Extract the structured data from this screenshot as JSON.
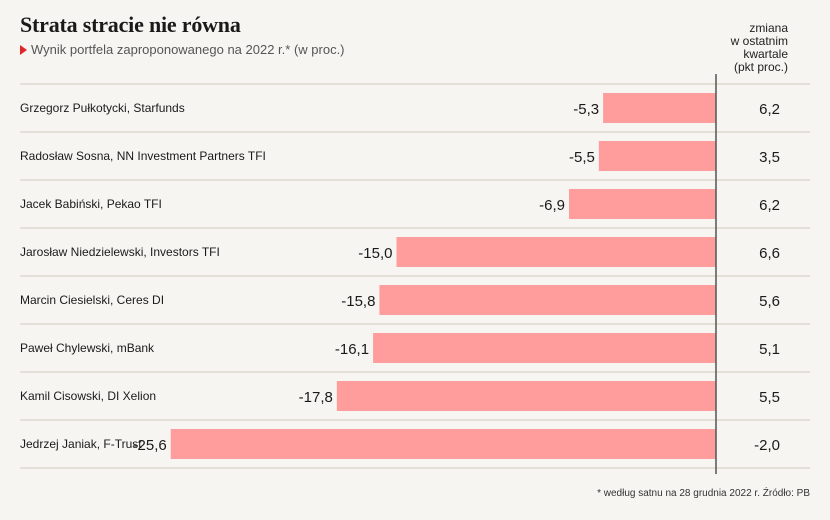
{
  "header": {
    "title": "Strata stracie nie równa",
    "subtitle": "Wynik portfela zaproponowanego na 2022 r.* (w proc.)",
    "change_header_lines": [
      "zmiana",
      "w ostatnim",
      "kwartale",
      "(pkt proc.)"
    ]
  },
  "footnote": "* według satnu na 28 grudnia 2022 r. Źródło: PB",
  "colors": {
    "bar": "#ff9c9c",
    "marker": "#e0262b",
    "divider": "#cfcbc4"
  },
  "chart_data": {
    "type": "bar",
    "orientation": "horizontal",
    "categories": [
      "Grzegorz Pułkotycki, Starfunds",
      "Radosław Sosna, NN Investment Partners TFI",
      "Jacek Babiński, Pekao TFI",
      "Jarosław Niedzielewski, Investors TFI",
      "Marcin Ciesielski, Ceres DI",
      "Paweł Chylewski, mBank",
      "Kamil Cisowski, DI Xelion",
      "Jedrzej Janiak, F-Trust"
    ],
    "series": [
      {
        "values": [
          -5.3,
          -5.5,
          -6.9,
          -15.0,
          -15.8,
          -16.1,
          -17.8,
          -25.6
        ],
        "labels": [
          "-5,3",
          "-5,5",
          "-6,9",
          "-15,0",
          "-15,8",
          "-16,1",
          "-17,8",
          "-25,6"
        ]
      }
    ],
    "change_labels": [
      "6,2",
      "3,5",
      "6,2",
      "6,6",
      "5,6",
      "5,1",
      "5,5",
      "-2,0"
    ],
    "change_values": [
      6.2,
      3.5,
      6.2,
      6.6,
      5.6,
      5.1,
      5.5,
      -2.0
    ]
  }
}
